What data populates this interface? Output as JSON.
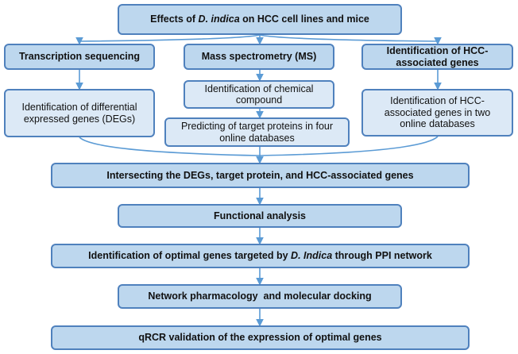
{
  "title": {
    "pre": "Effects of ",
    "italic": "D. indica",
    "post": " on HCC cell lines and mice"
  },
  "branches": [
    {
      "heading": "Transcription sequencing",
      "steps": [
        "Identification of differential expressed genes (DEGs)"
      ]
    },
    {
      "heading": "Mass spectrometry (MS)",
      "steps": [
        "Identification of chemical compound",
        "Predicting of target proteins in four online databases"
      ]
    },
    {
      "heading": "Identification of HCC-associated genes",
      "steps": [
        "Identification of HCC-associated genes in two online databases"
      ]
    }
  ],
  "pipeline": {
    "intersect": "Intersecting the DEGs, target protein, and HCC-associated genes",
    "functional": "Functional analysis",
    "optimal": {
      "pre": "Identification of optimal genes targeted by ",
      "italic": "D. Indica",
      "post": " through PPI network"
    },
    "network": "Network pharmacology  and molecular docking",
    "validation": "qRCR validation of the expression of optimal genes"
  },
  "colors": {
    "border": "#4f81bd",
    "heading_fill": "#bdd7ee",
    "step_fill": "#dce9f6",
    "arrow": "#5b9bd5"
  }
}
